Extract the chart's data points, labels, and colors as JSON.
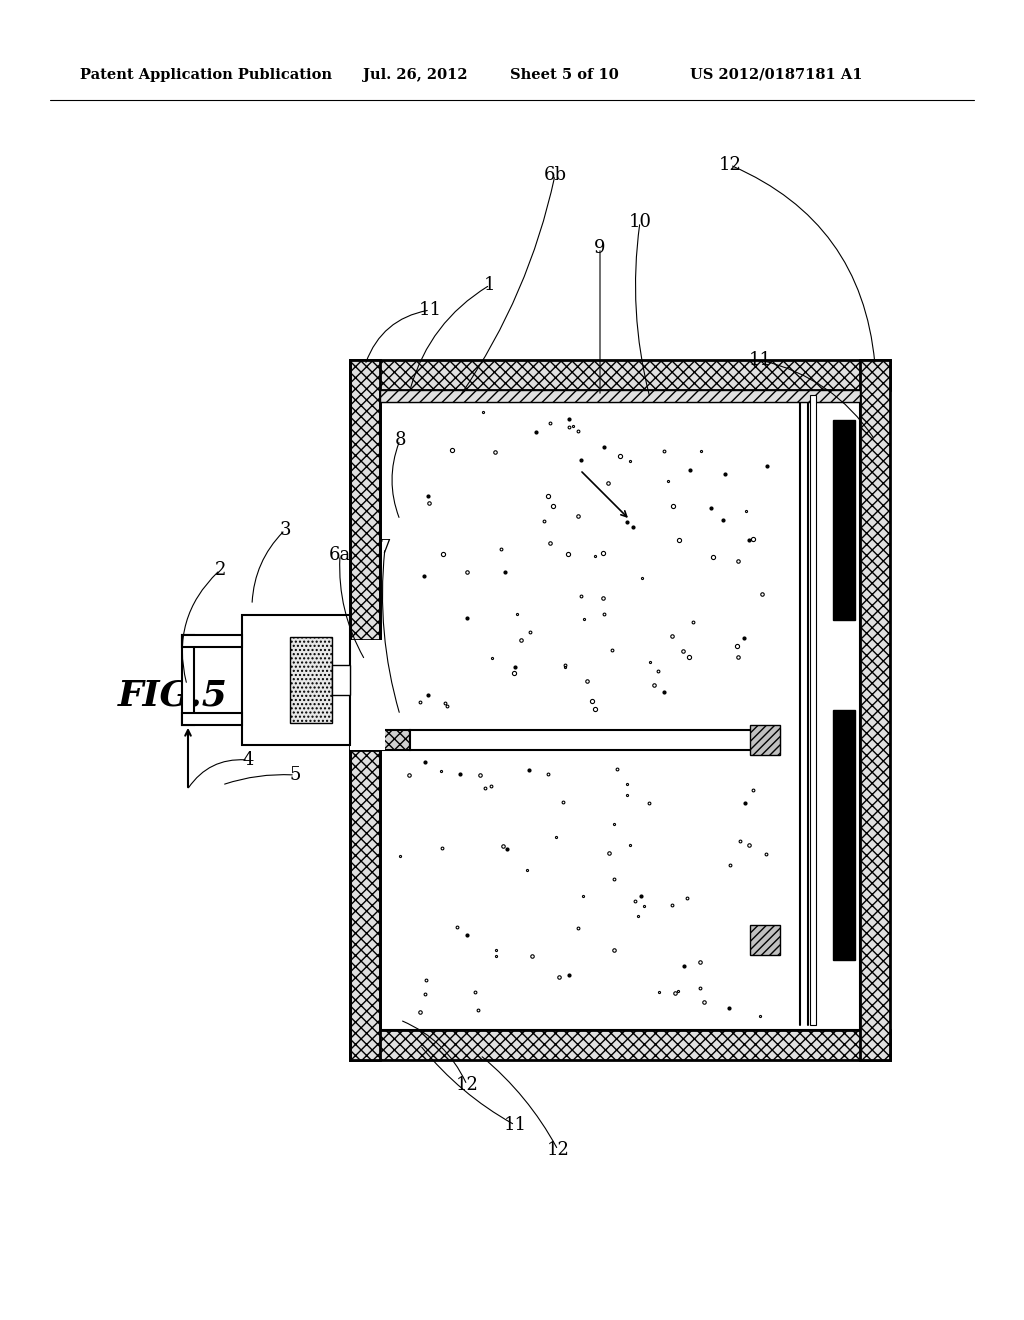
{
  "title_line1": "Patent Application Publication",
  "title_date": "Jul. 26, 2012",
  "title_sheet": "Sheet 5 of 10",
  "title_patent": "US 2012/0187181 A1",
  "fig_label": "FIG.5",
  "bg_color": "#ffffff"
}
